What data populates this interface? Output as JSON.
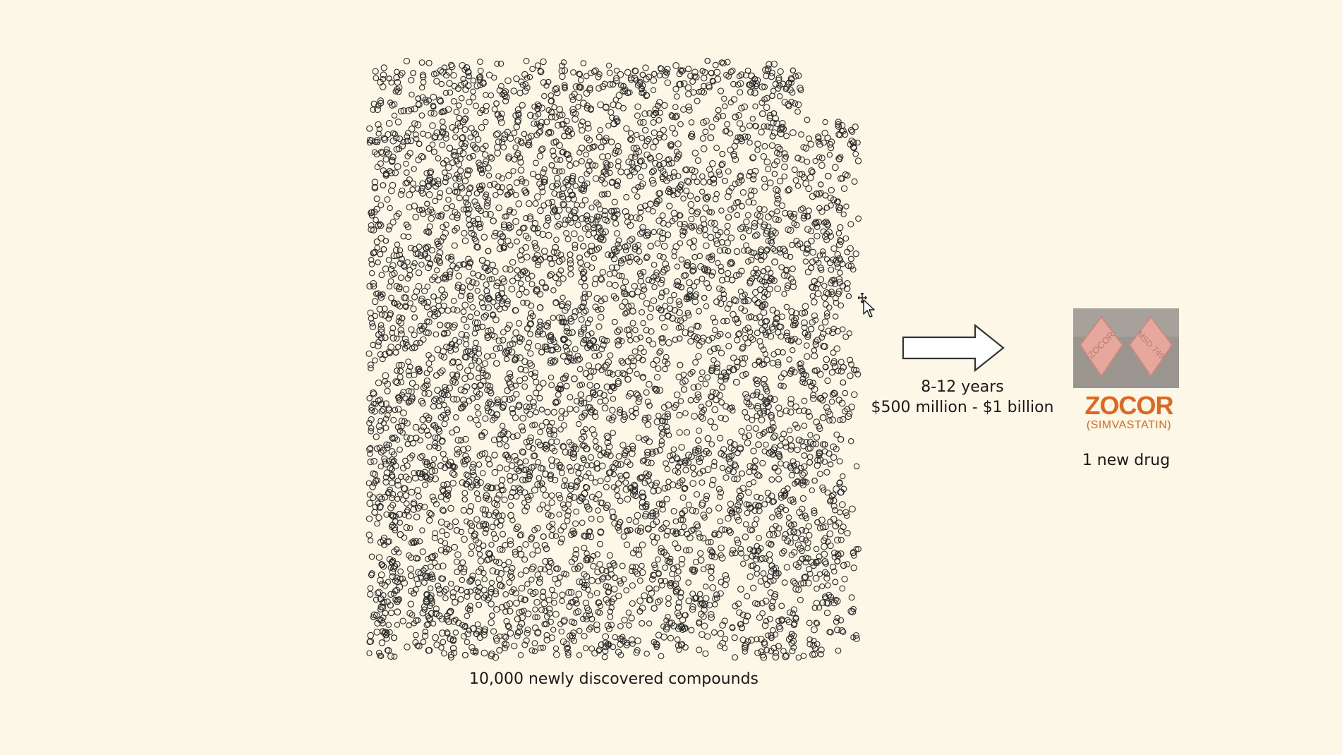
{
  "compounds": {
    "caption": "10,000 newly discovered compounds",
    "count": 10000
  },
  "arrow": {
    "icon": "right-arrow-icon",
    "duration_label": "8-12 years",
    "cost_label": "$500 million - $1 billion"
  },
  "drug": {
    "brand": "ZOCOR",
    "generic": "(SIMVASTATIN)",
    "caption": "1 new drug",
    "pill_imprint_left": "ZOCOR",
    "pill_imprint_right": "MSD 749"
  },
  "colors": {
    "background": "#fdf7e8",
    "compound_stroke": "#2a2a2a",
    "brand": "#e0671f",
    "pill": "#e6a79c",
    "photo_background": "#9b9590"
  },
  "cursor": {
    "icon": "move-cursor-icon"
  }
}
